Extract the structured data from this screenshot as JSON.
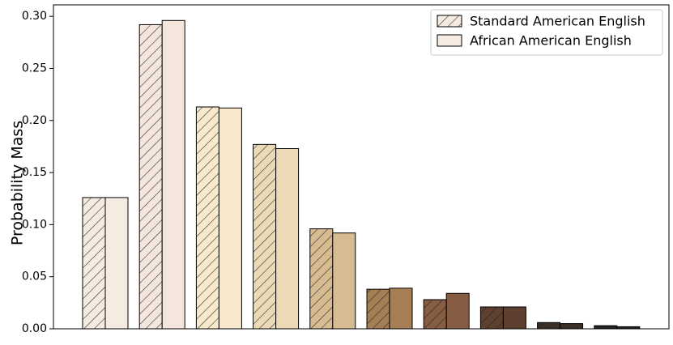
{
  "chart_data": {
    "type": "bar",
    "y_label": "Probability Mass",
    "categories": [
      null,
      null,
      null,
      null,
      null,
      null,
      null,
      null,
      null,
      null
    ],
    "colors": [
      "#f5ebe1",
      "#f4e6dc",
      "#f8e8cc",
      "#ecdab7",
      "#d7bb91",
      "#a57e53",
      "#865d42",
      "#5e4030",
      "#3a2f26",
      "#242220"
    ],
    "series": [
      {
        "name": "Standard American English",
        "color": "#f5ebe1",
        "hatch": "//",
        "values": [
          0.126,
          0.292,
          0.213,
          0.177,
          0.096,
          0.038,
          0.028,
          0.021,
          0.006,
          0.003
        ]
      },
      {
        "name": "African American English",
        "color": "#f5ebe1",
        "values": [
          0.126,
          0.296,
          0.212,
          0.173,
          0.092,
          0.039,
          0.034,
          0.021,
          0.005,
          0.002
        ]
      }
    ],
    "ylim": [
      0,
      0.311
    ],
    "yticks": [
      {
        "value": 0,
        "label": "0.00"
      },
      {
        "value": 0.05,
        "label": "0.05"
      },
      {
        "value": 0.1,
        "label": "0.10"
      },
      {
        "value": 0.15,
        "label": "0.15"
      },
      {
        "value": 0.2,
        "label": "0.20"
      },
      {
        "value": 0.25,
        "label": "0.25"
      },
      {
        "value": 0.3,
        "label": "0.30"
      }
    ],
    "legend": "upper right"
  }
}
